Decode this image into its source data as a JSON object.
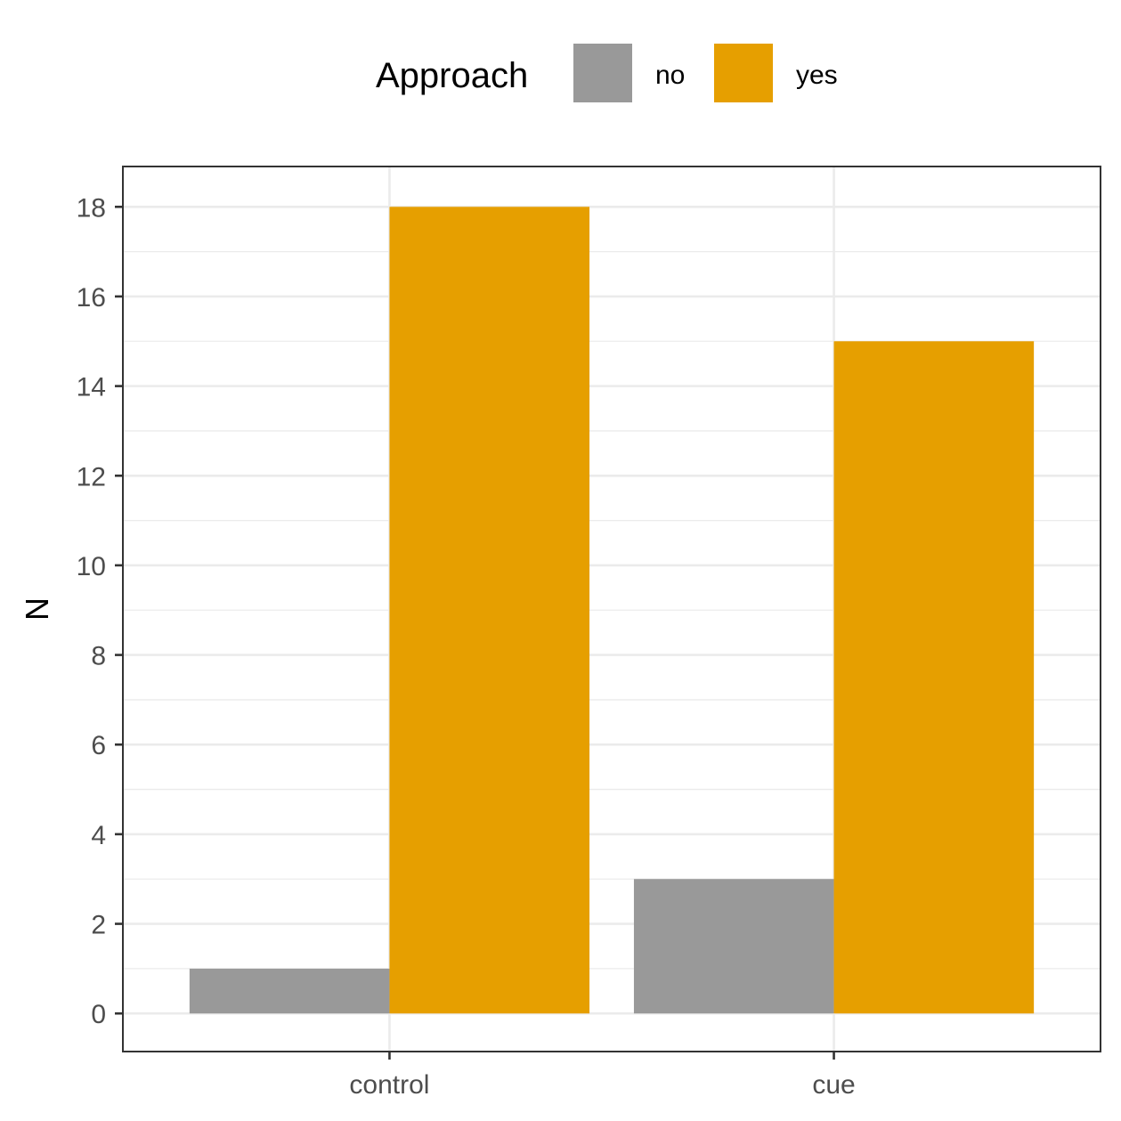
{
  "chart_data": {
    "type": "bar",
    "categories": [
      "control",
      "cue"
    ],
    "series": [
      {
        "name": "no",
        "values": [
          1,
          3
        ]
      },
      {
        "name": "yes",
        "values": [
          18,
          15
        ]
      }
    ],
    "xlabel": "",
    "ylabel": "N",
    "ylim": [
      -0.85,
      18.9
    ],
    "yticks": [
      0,
      2,
      4,
      6,
      8,
      10,
      12,
      14,
      16,
      18
    ],
    "grid": true,
    "legend": {
      "title": "Approach",
      "position": "top",
      "entries": [
        "no",
        "yes"
      ]
    },
    "colors": {
      "no": "#999999",
      "yes": "#E69F00",
      "grid": "#ebebeb",
      "panel_border": "#333333"
    }
  }
}
